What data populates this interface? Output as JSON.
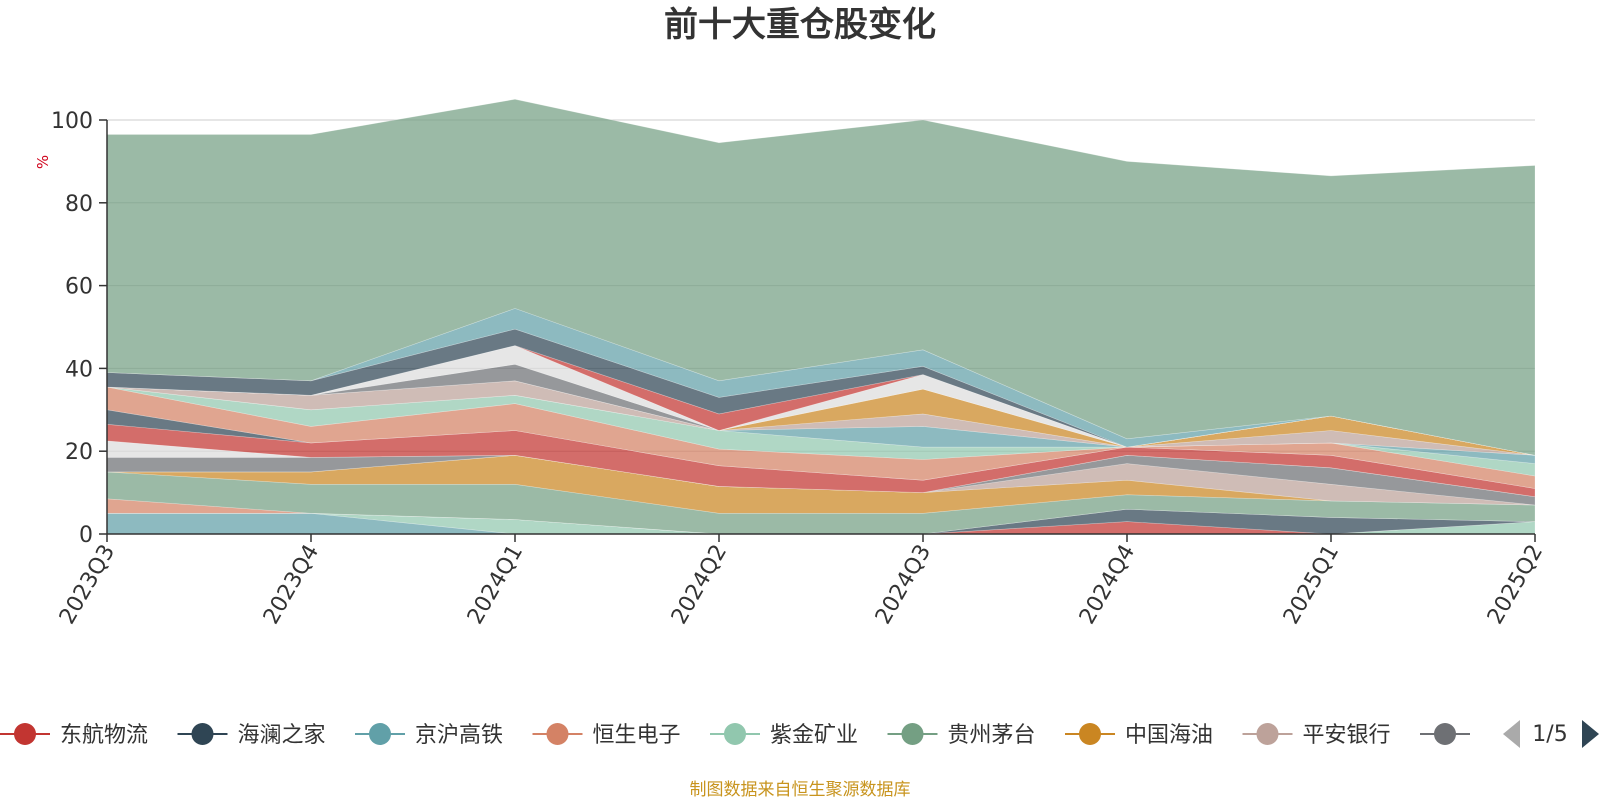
{
  "chart_data": {
    "type": "area",
    "title": "前十大重仓股变化",
    "ylabel": "%",
    "ylim": [
      0,
      100
    ],
    "yticks": [
      0,
      20,
      40,
      60,
      80,
      100
    ],
    "categories": [
      "2023Q3",
      "2023Q4",
      "2024Q1",
      "2024Q2",
      "2024Q3",
      "2024Q4",
      "2025Q1",
      "2025Q2"
    ],
    "grid": true,
    "legend": {
      "position": "bottom",
      "page": "1/5",
      "items": [
        {
          "name": "东航物流",
          "color": "#c23531"
        },
        {
          "name": "海澜之家",
          "color": "#2f4554"
        },
        {
          "name": "京沪高铁",
          "color": "#61a0a8"
        },
        {
          "name": "恒生电子",
          "color": "#d48265"
        },
        {
          "name": "紫金矿业",
          "color": "#91c7ae"
        },
        {
          "name": "贵州茅台",
          "color": "#749f83"
        },
        {
          "name": "中国海油",
          "color": "#ca8622"
        },
        {
          "name": "平安银行",
          "color": "#bda29a"
        },
        {
          "name": "",
          "color": "#6e7074"
        }
      ]
    },
    "series": [
      {
        "color": "#61a0a8",
        "values": [
          5,
          5,
          0,
          0,
          0,
          0,
          0,
          0
        ]
      },
      {
        "color": "#91c7ae",
        "values": [
          0,
          0,
          3.5,
          0,
          0,
          0,
          0,
          3
        ]
      },
      {
        "color": "#c23531",
        "values": [
          0,
          0,
          0,
          0,
          0,
          3,
          0,
          0
        ]
      },
      {
        "color": "#2f4554",
        "values": [
          0,
          0,
          0,
          0,
          0,
          3,
          4,
          0
        ]
      },
      {
        "color": "#d48265",
        "values": [
          3.5,
          0,
          0,
          0,
          0,
          0,
          0,
          0
        ]
      },
      {
        "color": "#749f83",
        "values": [
          6.5,
          7,
          8.5,
          5,
          5,
          3.5,
          4,
          4
        ]
      },
      {
        "color": "#ca8622",
        "values": [
          0,
          3,
          7,
          6.5,
          5,
          3.5,
          0,
          0
        ]
      },
      {
        "color": "#bda29a",
        "values": [
          0,
          0,
          0,
          0,
          0,
          4,
          4,
          0
        ]
      },
      {
        "color": "#6e7074",
        "values": [
          3.5,
          3.5,
          0,
          0,
          0,
          2,
          4,
          2
        ]
      },
      {
        "color": "#dddddd",
        "values": [
          4,
          0,
          0,
          0,
          0,
          0,
          0,
          0
        ]
      },
      {
        "color": "#c23531",
        "values": [
          4,
          3.5,
          6,
          5,
          3,
          2,
          3,
          2
        ]
      },
      {
        "color": "#2f4554",
        "values": [
          3.5,
          0,
          0,
          0,
          0,
          0,
          0,
          0
        ]
      },
      {
        "color": "#d48265",
        "values": [
          5.5,
          4,
          6.5,
          4,
          5,
          0,
          3,
          3
        ]
      },
      {
        "color": "#91c7ae",
        "values": [
          0,
          4,
          2,
          4.5,
          3,
          0,
          0,
          3
        ]
      },
      {
        "color": "#61a0a8",
        "values": [
          0,
          0,
          0,
          0,
          5,
          0,
          0,
          2
        ]
      },
      {
        "color": "#bda29a",
        "values": [
          0,
          3.5,
          3.5,
          0,
          3,
          0,
          3,
          0
        ]
      },
      {
        "color": "#ca8622",
        "values": [
          0,
          0,
          0,
          0,
          6,
          0,
          3.5,
          0
        ]
      },
      {
        "color": "#6e7074",
        "values": [
          0,
          0,
          4,
          0,
          0,
          0,
          0,
          0
        ]
      },
      {
        "color": "#dddddd",
        "values": [
          0,
          0,
          4.5,
          0,
          3.5,
          0,
          0,
          0
        ]
      },
      {
        "color": "#c23531",
        "values": [
          0,
          0,
          0,
          4,
          0,
          0,
          0,
          0
        ]
      },
      {
        "color": "#2f4554",
        "values": [
          3.5,
          3.5,
          4,
          4,
          2,
          0,
          0,
          0
        ]
      },
      {
        "color": "#61a0a8",
        "values": [
          0,
          0,
          5,
          4,
          4,
          2,
          0,
          0
        ]
      },
      {
        "color": "#749f83",
        "values": [
          57.5,
          59.5,
          50.5,
          57.5,
          55.5,
          67,
          58,
          70
        ]
      }
    ]
  },
  "source_note": "制图数据来自恒生聚源数据库"
}
